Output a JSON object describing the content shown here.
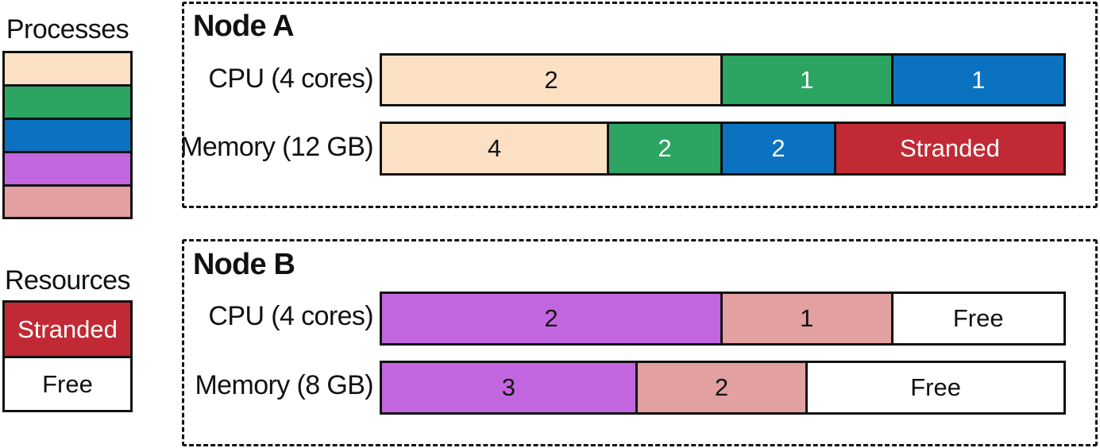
{
  "colors": {
    "p1": "#fce0c4",
    "p2": "#2ca462",
    "p3": "#0b72c2",
    "p4": "#c266df",
    "p5": "#e3a0a1",
    "stranded": "#c12a34",
    "free": "#ffffff"
  },
  "legend": {
    "processes_title": "Processes",
    "resources_title": "Resources",
    "stranded_label": "Stranded",
    "free_label": "Free"
  },
  "nodes": [
    {
      "title": "Node A",
      "rows": [
        {
          "label": "CPU (4 cores)",
          "segments": [
            {
              "text": "2",
              "value": 2,
              "total": 4,
              "color": "p1"
            },
            {
              "text": "1",
              "value": 1,
              "total": 4,
              "color": "p2"
            },
            {
              "text": "1",
              "value": 1,
              "total": 4,
              "color": "p3"
            }
          ]
        },
        {
          "label": "Memory (12 GB)",
          "segments": [
            {
              "text": "4",
              "value": 4,
              "total": 12,
              "color": "p1"
            },
            {
              "text": "2",
              "value": 2,
              "total": 12,
              "color": "p2"
            },
            {
              "text": "2",
              "value": 2,
              "total": 12,
              "color": "p3"
            },
            {
              "text": "Stranded",
              "value": 4,
              "total": 12,
              "color": "stranded"
            }
          ]
        }
      ]
    },
    {
      "title": "Node B",
      "rows": [
        {
          "label": "CPU (4 cores)",
          "segments": [
            {
              "text": "2",
              "value": 2,
              "total": 4,
              "color": "p4"
            },
            {
              "text": "1",
              "value": 1,
              "total": 4,
              "color": "p5"
            },
            {
              "text": "Free",
              "value": 1,
              "total": 4,
              "color": "free"
            }
          ]
        },
        {
          "label": "Memory (8 GB)",
          "segments": [
            {
              "text": "3",
              "value": 3,
              "total": 8,
              "color": "p4"
            },
            {
              "text": "2",
              "value": 2,
              "total": 8,
              "color": "p5"
            },
            {
              "text": "Free",
              "value": 3,
              "total": 8,
              "color": "free"
            }
          ]
        }
      ]
    }
  ]
}
